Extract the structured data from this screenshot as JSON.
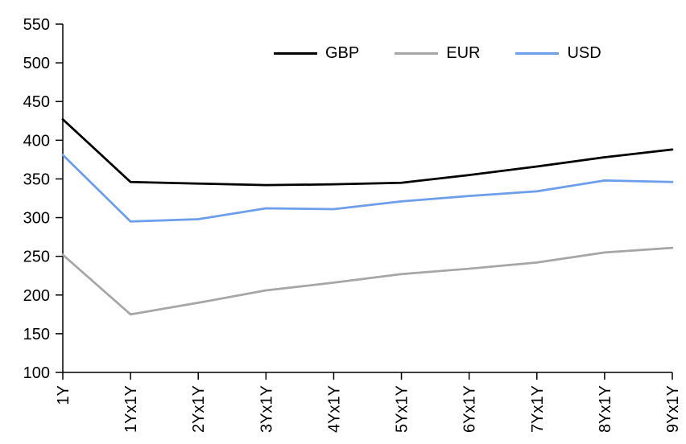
{
  "chart_data": {
    "type": "line",
    "title": "",
    "xlabel": "",
    "ylabel": "",
    "categories": [
      "1Y",
      "1Yx1Y",
      "2Yx1Y",
      "3Yx1Y",
      "4Yx1Y",
      "5Yx1Y",
      "6Yx1Y",
      "7Yx1Y",
      "8Yx1Y",
      "9Yx1Y"
    ],
    "series": [
      {
        "name": "GBP",
        "color": "#000000",
        "values": [
          427,
          346,
          344,
          342,
          343,
          345,
          355,
          366,
          378,
          388
        ]
      },
      {
        "name": "EUR",
        "color": "#A6A6A6",
        "values": [
          252,
          175,
          190,
          206,
          216,
          227,
          234,
          242,
          255,
          261
        ]
      },
      {
        "name": "USD",
        "color": "#6D9EEB",
        "values": [
          381,
          295,
          298,
          312,
          311,
          321,
          328,
          334,
          348,
          346
        ]
      }
    ],
    "ylim": [
      100,
      550
    ],
    "ytick_step": 50,
    "yticks": [
      100,
      150,
      200,
      250,
      300,
      350,
      400,
      450,
      500,
      550
    ],
    "grid": false,
    "legend_position": "top"
  },
  "legend": {
    "items": [
      {
        "label": "GBP",
        "color": "#000000"
      },
      {
        "label": "EUR",
        "color": "#A6A6A6"
      },
      {
        "label": "USD",
        "color": "#6D9EEB"
      }
    ]
  }
}
